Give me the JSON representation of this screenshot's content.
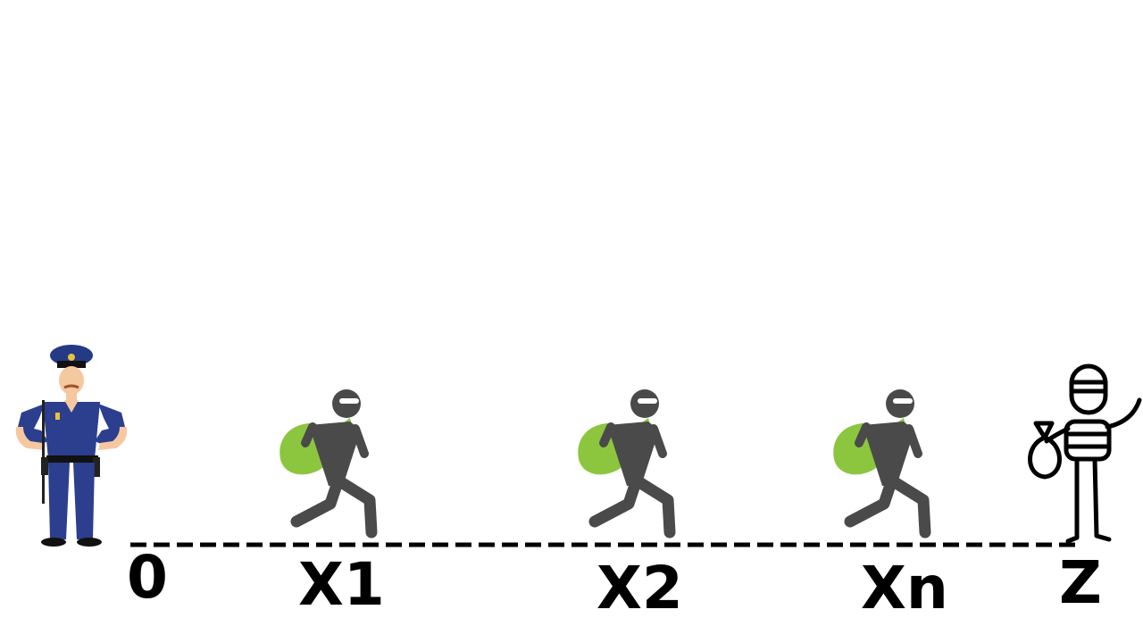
{
  "labels": {
    "origin": "0",
    "thief1": "X1",
    "thief2": "X2",
    "thiefn": "Xn",
    "target": "Z"
  },
  "colors": {
    "background": "#ffffff",
    "thief_body": "#4a4a4a",
    "loot_bag": "#8cc63f",
    "police_uniform": "#2b3f8e",
    "skin": "#f6c8a0",
    "line": "#000000"
  },
  "icons": [
    "police-officer-icon",
    "thief-running-icon",
    "striped-prisoner-icon"
  ]
}
